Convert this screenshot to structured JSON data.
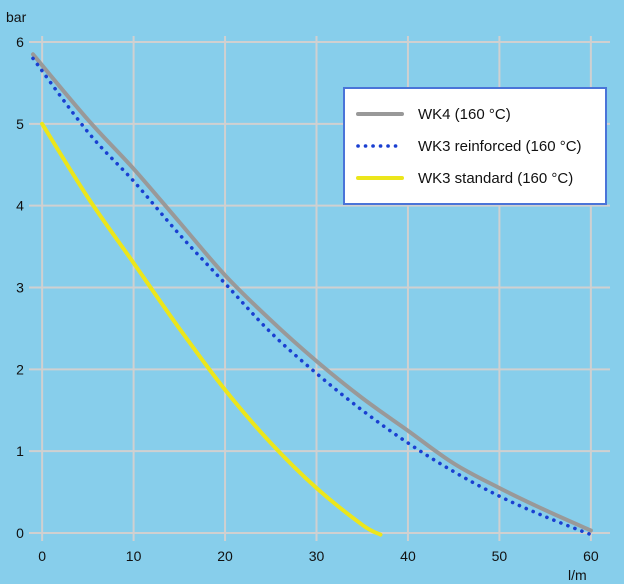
{
  "chart_data": {
    "type": "line",
    "title": "",
    "ylabel": "bar",
    "xlabel": "l/m",
    "xlim": [
      -1,
      61
    ],
    "ylim": [
      0,
      6
    ],
    "x_ticks": [
      0,
      10,
      20,
      30,
      40,
      50,
      60
    ],
    "y_ticks": [
      0,
      1,
      2,
      3,
      4,
      5,
      6
    ],
    "grid": true,
    "background_color": "#87ceeb",
    "gridline_color": "#d0d0d0",
    "legend_position": "top-right",
    "series": [
      {
        "name": "WK4 (160 °C)",
        "color": "#999999",
        "style": "solid",
        "x": [
          -1,
          5,
          10,
          15,
          20,
          25,
          30,
          35,
          40,
          45,
          50,
          55,
          60
        ],
        "y": [
          5.85,
          5.05,
          4.45,
          3.8,
          3.15,
          2.6,
          2.1,
          1.65,
          1.25,
          0.85,
          0.55,
          0.28,
          0.03
        ]
      },
      {
        "name": "WK3 reinforced (160 °C)",
        "color": "#1a3fd1",
        "style": "dotted",
        "x": [
          -1,
          5,
          10,
          15,
          20,
          25,
          30,
          35,
          40,
          45,
          50,
          55,
          60
        ],
        "y": [
          5.8,
          4.9,
          4.3,
          3.65,
          3.05,
          2.45,
          1.95,
          1.5,
          1.1,
          0.75,
          0.45,
          0.2,
          -0.02
        ]
      },
      {
        "name": "WK3 standard (160 °C)",
        "color": "#ece61b",
        "style": "solid",
        "x": [
          0,
          5,
          10,
          15,
          20,
          25,
          30,
          35,
          37
        ],
        "y": [
          5.0,
          4.1,
          3.3,
          2.5,
          1.75,
          1.1,
          0.55,
          0.1,
          -0.02
        ]
      }
    ]
  }
}
